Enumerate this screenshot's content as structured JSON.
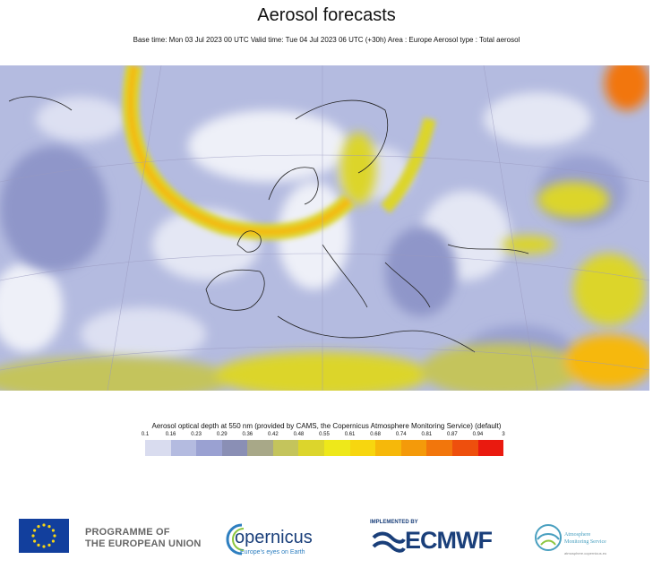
{
  "header": {
    "title": "Aerosol forecasts",
    "subtitle": "Base time: Mon 03 Jul 2023 00 UTC Valid time: Tue 04 Jul 2023 06 UTC (+30h) Area : Europe Aerosol type : Total aerosol"
  },
  "map": {
    "region": "Europe",
    "field": "Total aerosol optical depth"
  },
  "legend": {
    "title": "Aerosol optical depth at 550 nm (provided by CAMS, the Copernicus Atmosphere Monitoring Service) (default)",
    "ticks": [
      "0.1",
      "0.16",
      "0.23",
      "0.29",
      "0.36",
      "0.42",
      "0.48",
      "0.55",
      "0.61",
      "0.68",
      "0.74",
      "0.81",
      "0.87",
      "0.94",
      "3"
    ],
    "colors": [
      "#d9dcef",
      "#b4bbe0",
      "#9aa1d2",
      "#8a8fb5",
      "#a8a888",
      "#c4c45c",
      "#dcd52c",
      "#eee81a",
      "#f7d60f",
      "#f6b80a",
      "#f49a0a",
      "#f2760c",
      "#ee4f0d",
      "#ea1a0f"
    ]
  },
  "footer": {
    "eu_line1": "PROGRAMME OF",
    "eu_line2": "THE EUROPEAN UNION",
    "copernicus_name": "opernicus",
    "copernicus_tagline": "Europe's eyes on Earth",
    "ecmwf_implemented": "IMPLEMENTED BY",
    "ecmwf_name": "ECMWF",
    "ams_line1": "Atmosphere",
    "ams_line2": "Monitoring Service",
    "ams_url": "atmosphere.copernicus.eu"
  }
}
